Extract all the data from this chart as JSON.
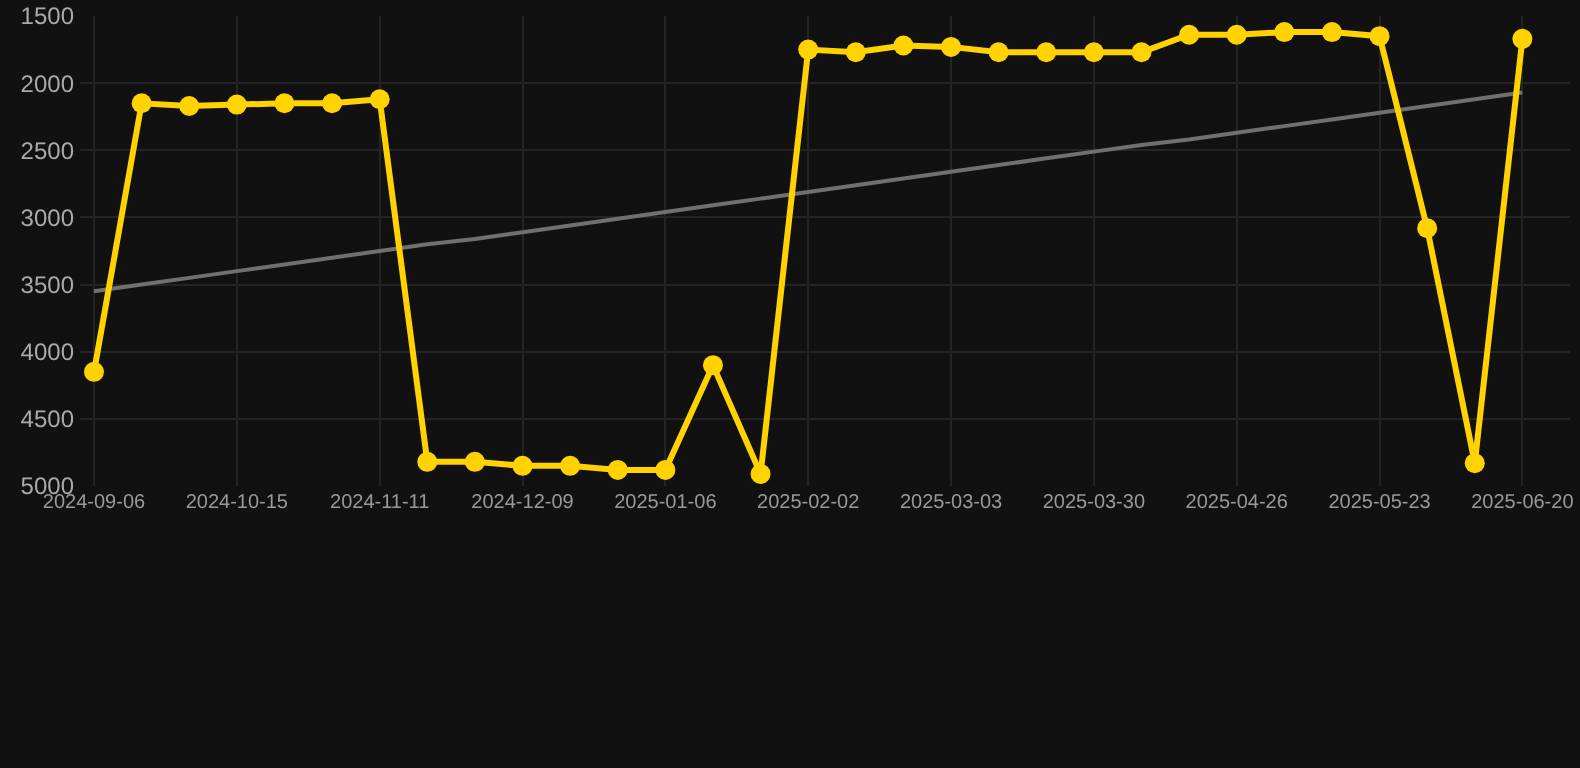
{
  "chart_data": {
    "type": "line",
    "categories": [
      "2024-09-06",
      null,
      null,
      "2024-10-15",
      null,
      null,
      "2024-11-11",
      null,
      null,
      "2024-12-09",
      null,
      null,
      "2025-01-06",
      null,
      null,
      "2025-02-02",
      null,
      null,
      "2025-03-03",
      null,
      null,
      "2025-03-30",
      null,
      null,
      "2025-04-26",
      null,
      null,
      "2025-05-23",
      null,
      null,
      "2025-06-20"
    ],
    "series": [
      {
        "color": "#ffd200",
        "values": [
          4150,
          2150,
          2170,
          2160,
          2150,
          2150,
          2120,
          4820,
          4820,
          4850,
          4850,
          4880,
          4880,
          4100,
          4910,
          1750,
          1770,
          1720,
          1730,
          1770,
          1770,
          1770,
          1770,
          1640,
          1640,
          1620,
          1620,
          1650,
          3080,
          4830,
          1670
        ]
      },
      {
        "type": "line",
        "color": "#707070",
        "marker": "none",
        "values": [
          3550,
          3500,
          3450,
          3400,
          3350,
          3300,
          3250,
          3200,
          3160,
          3110,
          3060,
          3010,
          2960,
          2910,
          2860,
          2810,
          2760,
          2710,
          2660,
          2610,
          2560,
          2510,
          2460,
          2420,
          2370,
          2320,
          2270,
          2220,
          2170,
          2120,
          2070
        ]
      }
    ],
    "ylim": [
      5000,
      1500
    ],
    "yticks": [
      1500,
      2000,
      2500,
      3000,
      3500,
      4000,
      4500,
      5000
    ],
    "grid": true,
    "marker": "circle",
    "line_style": "solid"
  }
}
